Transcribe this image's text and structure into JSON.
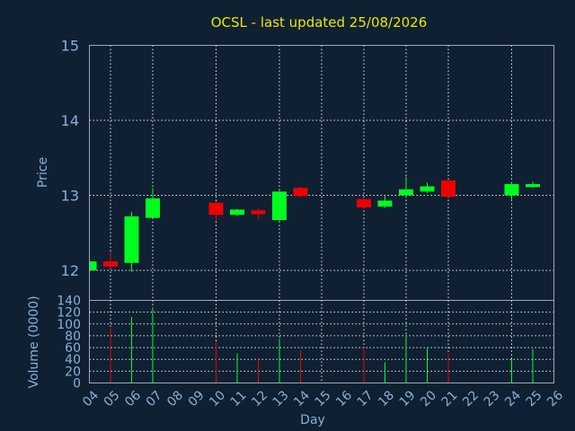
{
  "chart_data": {
    "type": "candlestick",
    "title": "OCSL - last updated 25/08/2026",
    "price_panel": {
      "ylabel": "Price",
      "ylim": [
        11.6,
        15.0
      ],
      "yticks": [
        12,
        13,
        14,
        15
      ]
    },
    "volume_panel": {
      "ylabel": "Volume (0000)",
      "ylim": [
        0,
        140
      ],
      "yticks": [
        0,
        20,
        40,
        60,
        80,
        100,
        120,
        140
      ]
    },
    "xlabel": "Day",
    "x_ticks": [
      "04",
      "05",
      "06",
      "07",
      "08",
      "09",
      "10",
      "11",
      "12",
      "13",
      "14",
      "15",
      "16",
      "17",
      "18",
      "19",
      "20",
      "21",
      "22",
      "23",
      "24",
      "25",
      "26"
    ],
    "x_gridlines": [
      "05",
      "07",
      "10",
      "13",
      "15",
      "17",
      "19",
      "21",
      "24"
    ],
    "candles": [
      {
        "day": "04",
        "open": 12.0,
        "close": 12.12,
        "high": 12.13,
        "low": 11.98,
        "volume": 0
      },
      {
        "day": "05",
        "open": 12.12,
        "close": 12.05,
        "high": 12.25,
        "low": 12.02,
        "volume": 93
      },
      {
        "day": "06",
        "open": 12.1,
        "close": 12.72,
        "high": 12.78,
        "low": 11.98,
        "volume": 112
      },
      {
        "day": "07",
        "open": 12.7,
        "close": 12.96,
        "high": 13.1,
        "low": 12.7,
        "volume": 127
      },
      {
        "day": "10",
        "open": 12.9,
        "close": 12.74,
        "high": 12.92,
        "low": 12.65,
        "volume": 70
      },
      {
        "day": "11",
        "open": 12.74,
        "close": 12.81,
        "high": 12.82,
        "low": 12.72,
        "volume": 50
      },
      {
        "day": "12",
        "open": 12.8,
        "close": 12.75,
        "high": 12.82,
        "low": 12.68,
        "volume": 42
      },
      {
        "day": "13",
        "open": 12.67,
        "close": 13.05,
        "high": 13.06,
        "low": 12.66,
        "volume": 75
      },
      {
        "day": "14",
        "open": 13.1,
        "close": 12.99,
        "high": 13.12,
        "low": 12.97,
        "volume": 55
      },
      {
        "day": "17",
        "open": 12.95,
        "close": 12.84,
        "high": 12.96,
        "low": 12.83,
        "volume": 60
      },
      {
        "day": "18",
        "open": 12.85,
        "close": 12.93,
        "high": 12.99,
        "low": 12.83,
        "volume": 35
      },
      {
        "day": "19",
        "open": 13.0,
        "close": 13.08,
        "high": 13.25,
        "low": 13.0,
        "volume": 82
      },
      {
        "day": "20",
        "open": 13.05,
        "close": 13.12,
        "high": 13.17,
        "low": 13.03,
        "volume": 60
      },
      {
        "day": "21",
        "open": 13.2,
        "close": 12.98,
        "high": 13.2,
        "low": 12.98,
        "volume": 50
      },
      {
        "day": "24",
        "open": 13.0,
        "close": 13.15,
        "high": 13.18,
        "low": 12.93,
        "volume": 40
      },
      {
        "day": "25",
        "open": 13.11,
        "close": 13.15,
        "high": 13.18,
        "low": 13.1,
        "volume": 57
      }
    ],
    "colors": {
      "up": "#00ff1e",
      "down": "#ee0000",
      "background": "#0f2033",
      "grid": "#e8e8e8",
      "title": "#e8e800",
      "axis_text": "#8ab0d8"
    },
    "grid": true
  }
}
